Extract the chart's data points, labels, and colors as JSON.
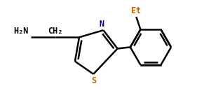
{
  "bg_color": "#ffffff",
  "line_color": "#000000",
  "N_color": "#0000bb",
  "S_color": "#bb6600",
  "Et_color": "#bb6600",
  "lw": 1.8,
  "fs": 8.5,
  "fig_width": 3.11,
  "fig_height": 1.43,
  "dpi": 100,
  "xlim": [
    0.0,
    6.5
  ],
  "ylim": [
    -0.3,
    3.2
  ]
}
